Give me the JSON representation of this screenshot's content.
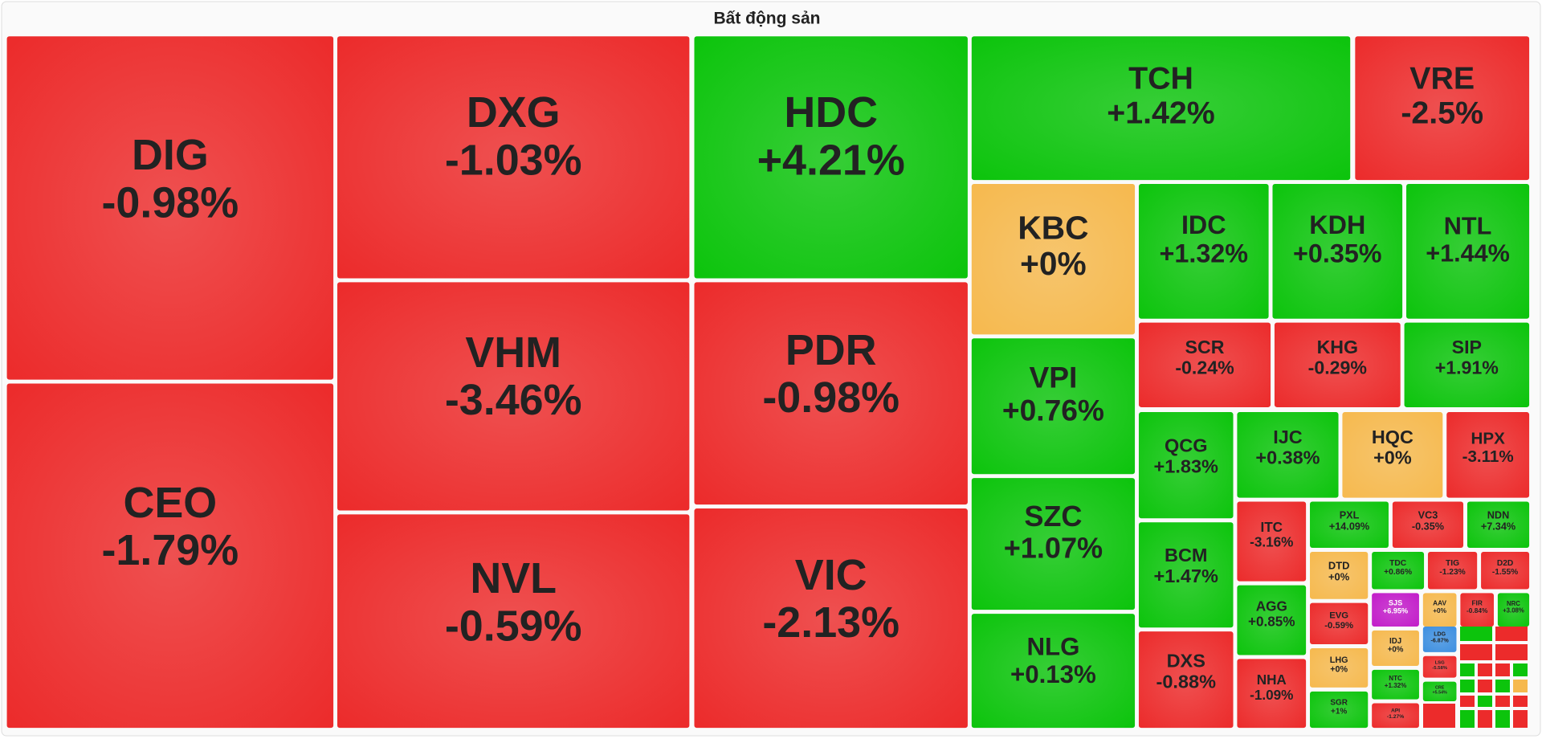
{
  "chart_data": {
    "type": "treemap",
    "title": "Bất động sản",
    "categories": [
      "DIG",
      "CEO",
      "DXG",
      "VHM",
      "NVL",
      "HDC",
      "PDR",
      "VIC",
      "TCH",
      "VRE",
      "KBC",
      "IDC",
      "KDH",
      "NTL",
      "SCR",
      "KHG",
      "SIP",
      "VPI",
      "SZC",
      "NLG",
      "QCG",
      "IJC",
      "HQC",
      "HPX",
      "BCM",
      "DXS",
      "ITC",
      "AGG",
      "NHA",
      "PXL",
      "VC3",
      "NDN",
      "DTD",
      "TDC",
      "TIG",
      "D2D",
      "EVG",
      "SJS",
      "AAV",
      "FIR",
      "NRC",
      "IDJ",
      "LDG",
      "LHG",
      "NTC",
      "LSG",
      "CRE",
      "SGR",
      "API"
    ],
    "values": [
      -0.98,
      -1.79,
      -1.03,
      -3.46,
      -0.59,
      4.21,
      -0.98,
      -2.13,
      1.42,
      -2.5,
      0,
      1.32,
      0.35,
      1.44,
      -0.24,
      -0.29,
      1.91,
      0.76,
      1.07,
      0.13,
      1.83,
      0.38,
      0,
      -3.11,
      1.47,
      -0.88,
      -3.16,
      0.85,
      -1.09,
      14.09,
      -0.35,
      7.34,
      0,
      0.86,
      -1.23,
      -1.55,
      -0.59,
      6.95,
      0,
      -0.84,
      3.08,
      0,
      -6.87,
      0,
      1.32,
      -5.58,
      5.54,
      1,
      -1.27
    ],
    "value_labels": [
      "-0.98%",
      "-1.79%",
      "-1.03%",
      "-3.46%",
      "-0.59%",
      "+4.21%",
      "-0.98%",
      "-2.13%",
      "+1.42%",
      "-2.5%",
      "+0%",
      "+1.32%",
      "+0.35%",
      "+1.44%",
      "-0.24%",
      "-0.29%",
      "+1.91%",
      "+0.76%",
      "+1.07%",
      "+0.13%",
      "+1.83%",
      "+0.38%",
      "+0%",
      "-3.11%",
      "+1.47%",
      "-0.88%",
      "-3.16%",
      "+0.85%",
      "-1.09%",
      "+14.09%",
      "-0.35%",
      "+7.34%",
      "+0%",
      "+0.86%",
      "-1.23%",
      "-1.55%",
      "-0.59%",
      "+6.95%",
      "+0%",
      "-0.84%",
      "+3.08%",
      "+0%",
      "-6.87%",
      "+0%",
      "+1.32%",
      "-5.58%",
      "+5.54%",
      "+1%",
      "-1.27%"
    ],
    "colors": [
      "#ec2b2b",
      "#ec2b2b",
      "#ec2b2b",
      "#ec2b2b",
      "#ec2b2b",
      "#0cc40c",
      "#ec2b2b",
      "#ec2b2b",
      "#0cc40c",
      "#ec2b2b",
      "#f6b94e",
      "#0cc40c",
      "#0cc40c",
      "#0cc40c",
      "#ec2b2b",
      "#ec2b2b",
      "#0cc40c",
      "#0cc40c",
      "#0cc40c",
      "#0cc40c",
      "#0cc40c",
      "#0cc40c",
      "#f6b94e",
      "#ec2b2b",
      "#0cc40c",
      "#ec2b2b",
      "#ec2b2b",
      "#0cc40c",
      "#ec2b2b",
      "#0cc40c",
      "#ec2b2b",
      "#0cc40c",
      "#f6b94e",
      "#0cc40c",
      "#ec2b2b",
      "#ec2b2b",
      "#ec2b2b",
      "#c21cc9",
      "#f6b94e",
      "#ec2b2b",
      "#0cc40c",
      "#f6b94e",
      "#3d8fe0",
      "#f6b94e",
      "#0cc40c",
      "#ec2b2b",
      "#0cc40c",
      "#0cc40c",
      "#ec2b2b"
    ]
  }
}
